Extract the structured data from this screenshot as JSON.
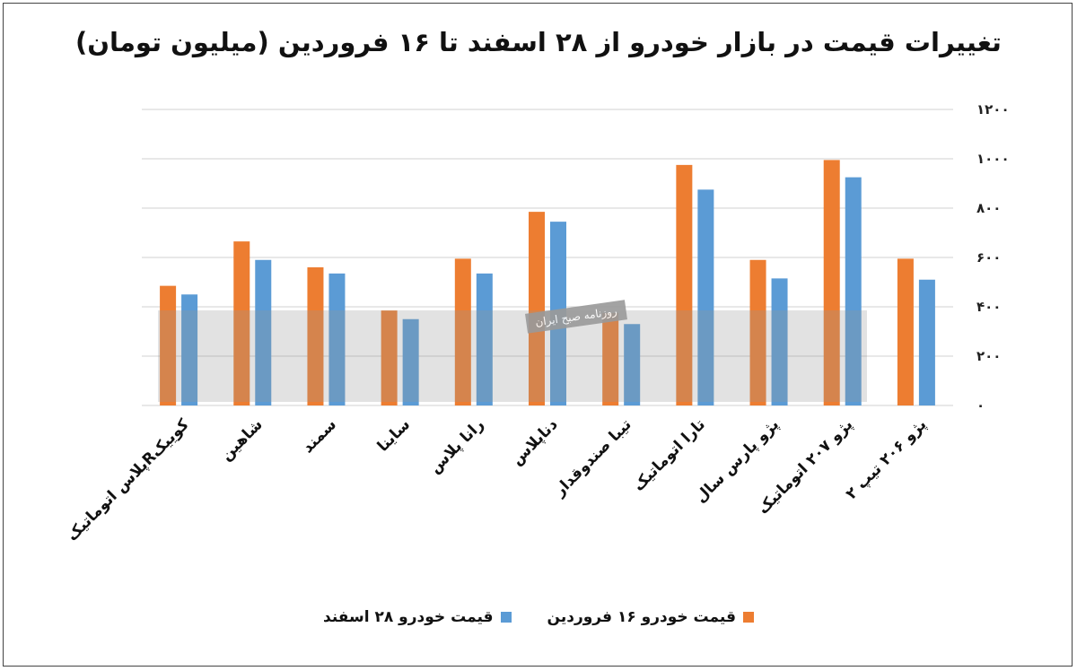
{
  "chart_data": {
    "type": "bar",
    "title": "تغییرات قیمت در بازار خودرو از ۲۸ اسفند تا ۱۶ فروردین (میلیون تومان)",
    "categories": [
      "کوییکRپلاس اتوماتیک",
      "شاهین",
      "سمند",
      "ساینا",
      "رانا پلاس",
      "دناپلاس",
      "تیبا صندوقدار",
      "تارا اتوماتیک",
      "پژو پارس سال",
      "پژو ۲۰۷ اتوماتیک",
      "پژو ۲۰۶ تیپ ۲"
    ],
    "series": [
      {
        "name": "قیمت خودرو ۱۶ فروردین",
        "color": "#ED7D31",
        "values": [
          485,
          665,
          560,
          385,
          595,
          785,
          375,
          975,
          590,
          995,
          595
        ]
      },
      {
        "name": "قیمت خودرو ۲۸ اسفند",
        "color": "#5B9BD5",
        "values": [
          450,
          590,
          535,
          350,
          535,
          745,
          330,
          875,
          515,
          925,
          510
        ]
      }
    ],
    "ylim": [
      0,
      1200
    ],
    "yticks": [
      "۰",
      "۲۰۰",
      "۴۰۰",
      "۶۰۰",
      "۸۰۰",
      "۱۰۰۰",
      "۱۲۰۰"
    ],
    "grid": true,
    "legend_position": "bottom"
  },
  "watermark": {
    "label": "روزنامه صبح ایران"
  }
}
